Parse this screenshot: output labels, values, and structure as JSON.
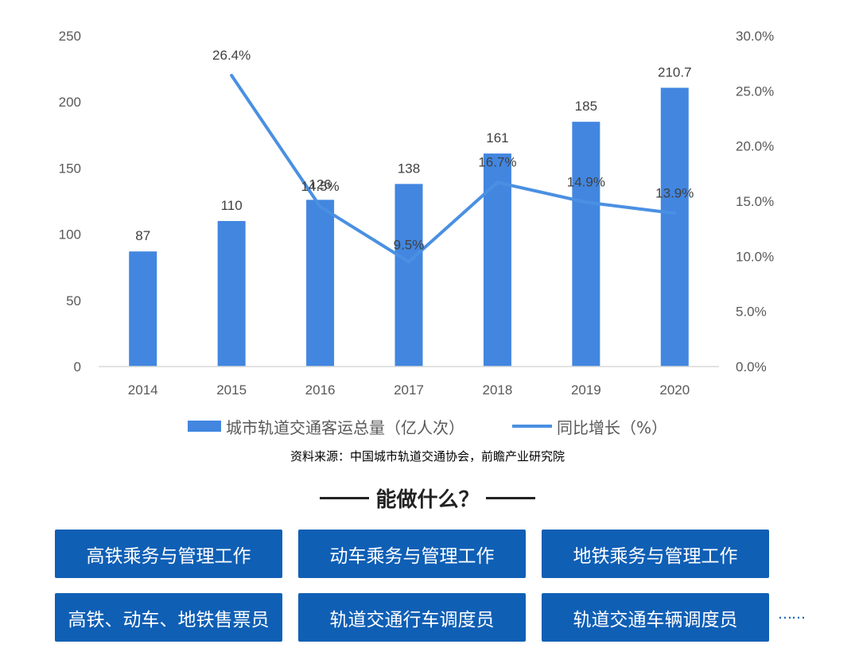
{
  "chart_data": {
    "type": "bar+line",
    "categories": [
      "2014",
      "2015",
      "2016",
      "2017",
      "2018",
      "2019",
      "2020"
    ],
    "series": [
      {
        "name": "城市轨道交通客运总量（亿人次）",
        "type": "bar",
        "axis": "left",
        "values": [
          87,
          110,
          126,
          138,
          161,
          185,
          210.7
        ],
        "labels": [
          "87",
          "110",
          "126",
          "138",
          "161",
          "185",
          "210.7"
        ],
        "color": "#4286e0"
      },
      {
        "name": "同比增长（%）",
        "type": "line",
        "axis": "right",
        "values": [
          null,
          26.4,
          14.5,
          9.5,
          16.7,
          14.9,
          13.9
        ],
        "labels": [
          "",
          "26.4%",
          "14.5%",
          "9.5%",
          "16.7%",
          "14.9%",
          "13.9%"
        ],
        "color": "#4a90e2"
      }
    ],
    "y_left": {
      "min": 0,
      "max": 250,
      "ticks": [
        "0",
        "50",
        "100",
        "150",
        "200",
        "250"
      ]
    },
    "y_right": {
      "min": 0,
      "max": 30,
      "ticks": [
        "0.0%",
        "5.0%",
        "10.0%",
        "15.0%",
        "20.0%",
        "25.0%",
        "30.0%"
      ]
    },
    "grid": false,
    "legend_position": "bottom"
  },
  "legend": {
    "bar_label": "城市轨道交通客运总量（亿人次）",
    "line_label": "同比增长（%）"
  },
  "source": "资料来源：中国城市轨道交通协会，前瞻产业研究院",
  "section_title": "能做什么？",
  "jobs": [
    "高铁乘务与管理工作",
    "动车乘务与管理工作",
    "地铁乘务与管理工作",
    "高铁、动车、地铁售票员",
    "轨道交通行车调度员",
    "轨道交通车辆调度员"
  ],
  "more": "……"
}
